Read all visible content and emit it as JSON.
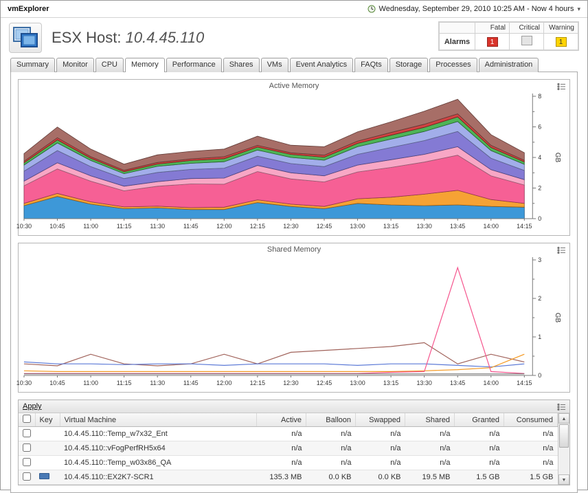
{
  "topbar": {
    "app_title": "vmExplorer",
    "timerange_label": "Wednesday, September 29, 2010 10:25 AM - Now 4 hours"
  },
  "icons": {
    "caret": "▾",
    "scroll_up": "▲",
    "scroll_down": "▼"
  },
  "header": {
    "title_prefix": "ESX Host:",
    "title_value": "10.4.45.110"
  },
  "alarms": {
    "label": "Alarms",
    "columns": [
      "Fatal",
      "Critical",
      "Warning"
    ],
    "counts": {
      "fatal": "1",
      "critical": "",
      "warning": "1"
    },
    "colors": {
      "fatal": "#d9342b",
      "critical": "#e4e4e4",
      "warning": "#ffd400"
    }
  },
  "tabs": {
    "items": [
      "Summary",
      "Monitor",
      "CPU",
      "Memory",
      "Performance",
      "Shares",
      "VMs",
      "Event Analytics",
      "FAQts",
      "Storage",
      "Processes",
      "Administration"
    ],
    "active": "Memory"
  },
  "chart_data": [
    {
      "type": "area",
      "stacked": true,
      "title": "Active Memory",
      "ylabel": "GB",
      "ylim": [
        0,
        8
      ],
      "yticks": [
        0,
        2,
        4,
        6,
        8
      ],
      "minor_step": 1,
      "legend": "none",
      "categories": [
        "10:30",
        "10:45",
        "11:00",
        "11:15",
        "11:30",
        "11:45",
        "12:00",
        "12:15",
        "12:30",
        "12:45",
        "13:00",
        "13:15",
        "13:30",
        "13:45",
        "14:00",
        "14:15"
      ],
      "series": [
        {
          "name": "blue",
          "color": "#2d8fd5",
          "values": [
            0.85,
            1.45,
            0.95,
            0.65,
            0.7,
            0.6,
            0.6,
            1.05,
            0.8,
            0.65,
            1.0,
            0.9,
            0.85,
            0.9,
            0.8,
            0.75
          ]
        },
        {
          "name": "orange",
          "color": "#f59a23",
          "values": [
            0.15,
            0.2,
            0.15,
            0.12,
            0.12,
            0.12,
            0.15,
            0.18,
            0.15,
            0.15,
            0.3,
            0.5,
            0.75,
            0.95,
            0.45,
            0.25
          ]
        },
        {
          "name": "pink",
          "color": "#f5538c",
          "values": [
            1.15,
            1.6,
            1.35,
            1.05,
            1.3,
            1.55,
            1.5,
            1.85,
            1.65,
            1.6,
            1.75,
            1.95,
            2.1,
            2.3,
            1.55,
            1.2
          ]
        },
        {
          "name": "light-pink",
          "color": "#f79fc0",
          "values": [
            0.3,
            0.4,
            0.35,
            0.3,
            0.3,
            0.35,
            0.4,
            0.4,
            0.4,
            0.4,
            0.45,
            0.5,
            0.5,
            0.55,
            0.4,
            0.35
          ]
        },
        {
          "name": "purple",
          "color": "#7a6fd0",
          "values": [
            0.65,
            0.8,
            0.6,
            0.5,
            0.6,
            0.6,
            0.65,
            0.6,
            0.6,
            0.6,
            0.7,
            0.8,
            0.9,
            1.0,
            0.75,
            0.6
          ]
        },
        {
          "name": "periwinkle",
          "color": "#9aa7e8",
          "values": [
            0.4,
            0.5,
            0.4,
            0.32,
            0.4,
            0.4,
            0.42,
            0.4,
            0.4,
            0.42,
            0.5,
            0.55,
            0.6,
            0.65,
            0.5,
            0.4
          ]
        },
        {
          "name": "green",
          "color": "#3fae49",
          "values": [
            0.15,
            0.2,
            0.15,
            0.13,
            0.15,
            0.18,
            0.2,
            0.2,
            0.2,
            0.2,
            0.22,
            0.25,
            0.27,
            0.3,
            0.2,
            0.16
          ]
        },
        {
          "name": "red",
          "color": "#cc3333",
          "values": [
            0.1,
            0.14,
            0.1,
            0.09,
            0.1,
            0.1,
            0.13,
            0.11,
            0.1,
            0.13,
            0.15,
            0.18,
            0.2,
            0.2,
            0.14,
            0.1
          ]
        },
        {
          "name": "brown",
          "color": "#a0625a",
          "values": [
            0.5,
            0.7,
            0.5,
            0.4,
            0.5,
            0.5,
            0.5,
            0.6,
            0.5,
            0.55,
            0.6,
            0.7,
            0.85,
            0.95,
            0.7,
            0.5
          ]
        }
      ]
    },
    {
      "type": "line",
      "stacked": false,
      "title": "Shared Memory",
      "ylabel": "GB",
      "ylim": [
        0,
        3
      ],
      "yticks": [
        0,
        1,
        2,
        3
      ],
      "minor_step": 0.5,
      "legend": "none",
      "categories": [
        "10:30",
        "10:45",
        "11:00",
        "11:15",
        "11:30",
        "11:45",
        "12:00",
        "12:15",
        "12:30",
        "12:45",
        "13:00",
        "13:15",
        "13:30",
        "13:45",
        "14:00",
        "14:15"
      ],
      "series": [
        {
          "name": "brown",
          "color": "#a0625a",
          "values": [
            0.3,
            0.25,
            0.55,
            0.3,
            0.25,
            0.3,
            0.55,
            0.3,
            0.6,
            0.65,
            0.7,
            0.75,
            0.85,
            0.3,
            0.55,
            0.35
          ]
        },
        {
          "name": "blue",
          "color": "#5b79d6",
          "values": [
            0.35,
            0.3,
            0.3,
            0.28,
            0.3,
            0.3,
            0.26,
            0.3,
            0.3,
            0.3,
            0.26,
            0.3,
            0.3,
            0.26,
            0.22,
            0.3
          ]
        },
        {
          "name": "orange",
          "color": "#f59a23",
          "values": [
            0.12,
            0.1,
            0.1,
            0.1,
            0.1,
            0.1,
            0.1,
            0.1,
            0.1,
            0.1,
            0.1,
            0.1,
            0.12,
            0.15,
            0.2,
            0.55
          ]
        },
        {
          "name": "pink",
          "color": "#f5538c",
          "values": [
            0.05,
            0.05,
            0.05,
            0.05,
            0.05,
            0.05,
            0.05,
            0.05,
            0.05,
            0.05,
            0.05,
            0.08,
            0.1,
            2.8,
            0.1,
            0.05
          ]
        },
        {
          "name": "gray",
          "color": "#707070",
          "values": [
            0.04,
            0.04,
            0.04,
            0.04,
            0.04,
            0.04,
            0.04,
            0.04,
            0.04,
            0.04,
            0.04,
            0.04,
            0.04,
            0.04,
            0.04,
            0.04
          ]
        }
      ]
    }
  ],
  "table": {
    "apply_label": "Apply",
    "columns": [
      "Key",
      "Virtual Machine",
      "Active",
      "Balloon",
      "Swapped",
      "Shared",
      "Granted",
      "Consumed"
    ],
    "rows": [
      {
        "key_color": "",
        "vm": "10.4.45.110::Temp_w7x32_Ent",
        "active": "n/a",
        "balloon": "n/a",
        "swapped": "n/a",
        "shared": "n/a",
        "granted": "n/a",
        "consumed": "n/a"
      },
      {
        "key_color": "",
        "vm": "10.4.45.110::vFogPerfRH5x64",
        "active": "n/a",
        "balloon": "n/a",
        "swapped": "n/a",
        "shared": "n/a",
        "granted": "n/a",
        "consumed": "n/a"
      },
      {
        "key_color": "",
        "vm": "10.4.45.110::Temp_w03x86_QA",
        "active": "n/a",
        "balloon": "n/a",
        "swapped": "n/a",
        "shared": "n/a",
        "granted": "n/a",
        "consumed": "n/a"
      },
      {
        "key_color": "#4a7ab5",
        "vm": "10.4.45.110::EX2K7-SCR1",
        "active": "135.3 MB",
        "balloon": "0.0 KB",
        "swapped": "0.0 KB",
        "shared": "19.5 MB",
        "granted": "1.5 GB",
        "consumed": "1.5 GB"
      }
    ]
  }
}
